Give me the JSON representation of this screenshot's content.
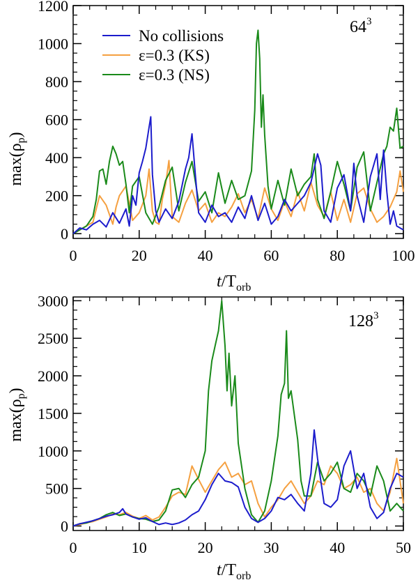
{
  "chart_data": [
    {
      "type": "line",
      "annotation": "64",
      "annotation_sup": "3",
      "xlabel_main": "t",
      "xlabel_sub": "orb",
      "xlabel_mid": "/T",
      "ylabel_main": "max(ρ",
      "ylabel_sub": "p",
      "ylabel_end": ")",
      "xlim": [
        0,
        100
      ],
      "ylim": [
        -25,
        1200
      ],
      "xticks": [
        0,
        20,
        40,
        60,
        80,
        100
      ],
      "yticks": [
        0,
        200,
        400,
        600,
        800,
        1000,
        1200
      ],
      "legend_position": "top-left",
      "grid": false,
      "series": [
        {
          "name": "No collisions",
          "color": "#1c1ccc",
          "x": [
            0,
            2,
            4,
            6,
            8,
            10,
            12,
            14,
            16,
            17,
            18,
            19,
            20,
            21,
            22,
            23,
            23.5,
            24,
            25,
            26,
            28,
            30,
            32,
            34,
            35,
            36,
            37,
            38,
            40,
            42,
            44,
            46,
            48,
            50,
            52,
            54,
            56,
            58,
            60,
            62,
            64,
            66,
            68,
            70,
            72,
            74,
            75,
            76,
            78,
            80,
            82,
            84,
            85,
            86,
            88,
            90,
            92,
            93,
            94,
            95,
            96,
            97,
            98,
            100
          ],
          "y": [
            0,
            30,
            20,
            50,
            70,
            35,
            110,
            55,
            130,
            40,
            200,
            150,
            320,
            380,
            450,
            560,
            615,
            310,
            120,
            60,
            130,
            80,
            170,
            340,
            400,
            525,
            310,
            110,
            60,
            150,
            90,
            110,
            60,
            140,
            80,
            200,
            70,
            160,
            50,
            90,
            180,
            120,
            160,
            200,
            270,
            420,
            360,
            120,
            60,
            240,
            310,
            120,
            370,
            200,
            60,
            300,
            420,
            180,
            440,
            220,
            50,
            120,
            40,
            20
          ]
        },
        {
          "name": "ε=0.3 (KS)",
          "color": "#f5a040",
          "x": [
            0,
            2,
            4,
            6,
            8,
            10,
            12,
            13,
            14,
            16,
            18,
            20,
            22,
            23,
            24,
            25,
            26,
            27,
            28,
            29,
            30,
            32,
            34,
            36,
            38,
            40,
            42,
            44,
            46,
            48,
            50,
            52,
            54,
            56,
            58,
            60,
            62,
            64,
            66,
            68,
            70,
            72,
            74,
            76,
            78,
            80,
            82,
            84,
            86,
            88,
            90,
            92,
            94,
            96,
            98,
            99,
            100
          ],
          "y": [
            0,
            20,
            40,
            60,
            200,
            150,
            50,
            140,
            200,
            250,
            70,
            110,
            200,
            340,
            120,
            60,
            50,
            180,
            260,
            385,
            90,
            60,
            160,
            230,
            120,
            160,
            60,
            110,
            90,
            140,
            210,
            110,
            180,
            80,
            240,
            130,
            70,
            170,
            90,
            220,
            120,
            270,
            150,
            90,
            220,
            70,
            180,
            60,
            210,
            240,
            130,
            60,
            90,
            140,
            220,
            330,
            220
          ]
        },
        {
          "name": "ε=0.3 (NS)",
          "color": "#1a8a1a",
          "x": [
            0,
            2,
            4,
            6,
            7,
            8,
            9,
            10,
            11,
            12,
            13,
            14,
            15,
            16,
            17,
            18,
            20,
            22,
            24,
            26,
            28,
            30,
            32,
            34,
            36,
            38,
            40,
            42,
            44,
            46,
            48,
            50,
            52,
            54,
            55,
            55.5,
            56,
            56.5,
            57,
            57.5,
            58,
            59,
            60,
            62,
            64,
            66,
            68,
            70,
            72,
            73,
            74,
            76,
            78,
            80,
            82,
            84,
            86,
            88,
            90,
            92,
            94,
            95,
            96,
            97,
            98,
            99,
            100
          ],
          "y": [
            0,
            20,
            40,
            90,
            180,
            330,
            340,
            260,
            380,
            460,
            420,
            360,
            380,
            260,
            110,
            250,
            300,
            110,
            50,
            140,
            280,
            350,
            120,
            270,
            380,
            170,
            220,
            110,
            320,
            160,
            280,
            180,
            200,
            330,
            650,
            1000,
            1070,
            920,
            560,
            730,
            520,
            250,
            130,
            280,
            150,
            340,
            200,
            260,
            300,
            420,
            180,
            80,
            220,
            380,
            260,
            120,
            350,
            430,
            120,
            270,
            420,
            460,
            560,
            540,
            660,
            450,
            460
          ]
        }
      ]
    },
    {
      "type": "line",
      "annotation": "128",
      "annotation_sup": "3",
      "xlabel_main": "t",
      "xlabel_sub": "orb",
      "xlabel_mid": "/T",
      "ylabel_main": "max(ρ",
      "ylabel_sub": "p",
      "ylabel_end": ")",
      "xlim": [
        0,
        50
      ],
      "ylim": [
        -60,
        3050
      ],
      "xticks": [
        0,
        10,
        20,
        30,
        40,
        50
      ],
      "yticks": [
        0,
        500,
        1000,
        1500,
        2000,
        2500,
        3000
      ],
      "legend_position": "none",
      "grid": false,
      "series": [
        {
          "name": "No collisions",
          "color": "#1c1ccc",
          "x": [
            0,
            1,
            2,
            3,
            4,
            5,
            6,
            7,
            7.5,
            8,
            9,
            10,
            11,
            12,
            13,
            14,
            15,
            16,
            17,
            18,
            19,
            20,
            21,
            22,
            23,
            24,
            25,
            26,
            27,
            28,
            29,
            30,
            31,
            32,
            33,
            34,
            35,
            36,
            36.5,
            37,
            37.5,
            38,
            39,
            40,
            41,
            42,
            43,
            44,
            45,
            46,
            47,
            48,
            49,
            50
          ],
          "y": [
            0,
            30,
            50,
            70,
            100,
            130,
            150,
            180,
            230,
            160,
            120,
            90,
            110,
            60,
            20,
            40,
            20,
            40,
            80,
            150,
            200,
            350,
            550,
            700,
            600,
            580,
            520,
            250,
            100,
            50,
            100,
            200,
            380,
            350,
            420,
            300,
            200,
            700,
            1280,
            900,
            600,
            300,
            250,
            350,
            800,
            1000,
            500,
            700,
            250,
            100,
            180,
            500,
            700,
            650
          ]
        },
        {
          "name": "ε=0.3 (KS)",
          "color": "#f5a040",
          "x": [
            0,
            1,
            2,
            3,
            4,
            5,
            6,
            7,
            8,
            9,
            10,
            11,
            12,
            13,
            14,
            15,
            16,
            17,
            18,
            19,
            20,
            21,
            22,
            23,
            24,
            25,
            26,
            27,
            28,
            29,
            30,
            31,
            32,
            33,
            34,
            35,
            36,
            37,
            38,
            39,
            40,
            41,
            42,
            43,
            44,
            45,
            46,
            47,
            48,
            49,
            50
          ],
          "y": [
            0,
            20,
            40,
            60,
            90,
            120,
            160,
            150,
            180,
            130,
            100,
            140,
            80,
            120,
            250,
            400,
            450,
            420,
            800,
            620,
            450,
            600,
            750,
            850,
            650,
            700,
            550,
            600,
            300,
            120,
            250,
            350,
            500,
            600,
            450,
            300,
            400,
            600,
            550,
            800,
            700,
            500,
            550,
            650,
            450,
            500,
            300,
            200,
            450,
            900,
            300
          ]
        },
        {
          "name": "ε=0.3 (NS)",
          "color": "#1a8a1a",
          "x": [
            0,
            1,
            2,
            3,
            4,
            5,
            6,
            7,
            8,
            9,
            10,
            11,
            12,
            13,
            14,
            15,
            16,
            17,
            18,
            19,
            20,
            20.5,
            21,
            21.5,
            22,
            22.5,
            23,
            23.3,
            23.6,
            24,
            24.5,
            25,
            26,
            27,
            28,
            29,
            30,
            31,
            31.5,
            32,
            32.3,
            32.6,
            33,
            34,
            34.5,
            35,
            36,
            37,
            38,
            39,
            40,
            41,
            42,
            43,
            44,
            45,
            46,
            47,
            48,
            49,
            50
          ],
          "y": [
            0,
            30,
            40,
            70,
            100,
            150,
            180,
            140,
            160,
            120,
            100,
            90,
            60,
            80,
            200,
            480,
            500,
            380,
            550,
            650,
            1000,
            1800,
            2200,
            2400,
            2600,
            3000,
            2400,
            1800,
            2300,
            1600,
            2000,
            1100,
            500,
            150,
            50,
            200,
            600,
            1200,
            1750,
            1900,
            2600,
            1700,
            1800,
            1150,
            600,
            400,
            400,
            850,
            600,
            700,
            850,
            500,
            450,
            700,
            600,
            400,
            800,
            600,
            200,
            300,
            200
          ]
        }
      ]
    }
  ]
}
